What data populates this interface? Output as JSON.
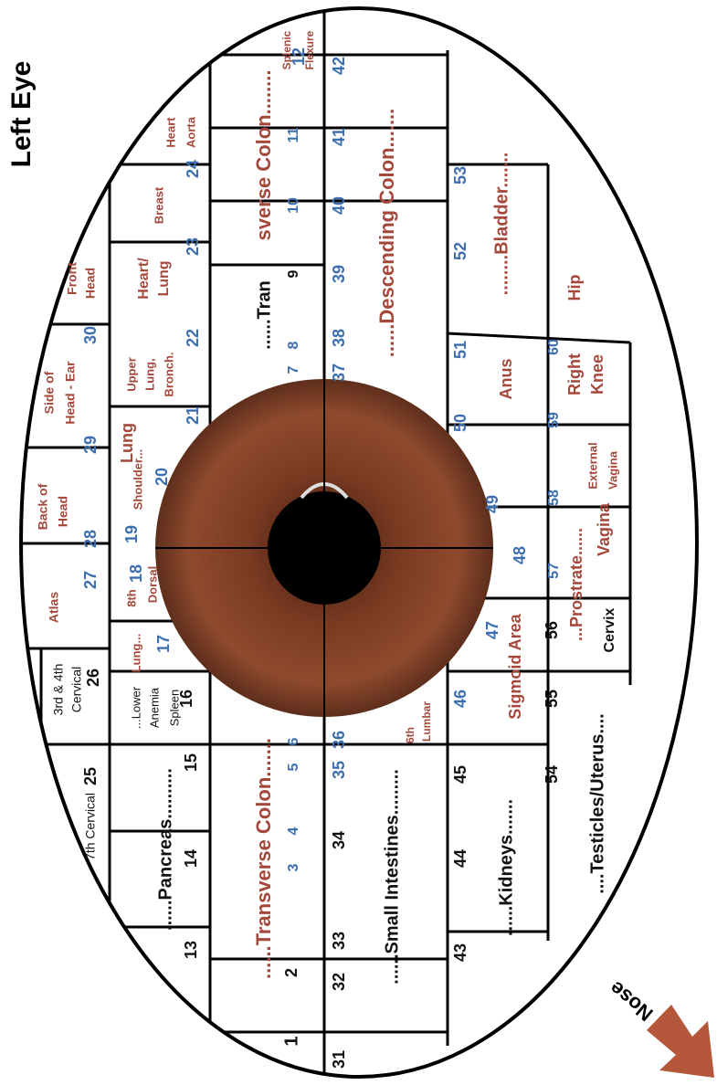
{
  "title": "Left Eye",
  "nose": "Nose",
  "labels": [
    "3rd & 4th",
    "Cervical",
    "26",
    "7th Cervical",
    "25",
    "Atlas",
    "27",
    "Back of",
    "Head",
    "28",
    "Side of",
    "Head - Ear",
    "29",
    "Front",
    "Head",
    "30",
    "Lung...",
    "17",
    "...Lower",
    "Anemia",
    "Spleen",
    "16",
    "8th",
    "18",
    "Dorsal",
    "19",
    "Shoulder...",
    "Lung",
    "20",
    "21",
    "Upper",
    "Lung,",
    "Bronch.",
    "22",
    "Heart/",
    "Lung",
    "23",
    "Breast",
    "24",
    "Heart",
    "Aorta",
    "15",
    "14",
    "13",
    "......Pancreas..........",
    "1",
    "2",
    "3",
    "4",
    "5",
    "6",
    "......Transverse Colon.......",
    "7",
    "8",
    "9",
    "......Tran",
    "sverse Colon........",
    "10",
    "11",
    "12",
    "Splenic",
    "Flexure",
    "31",
    "32",
    "33",
    "34",
    "35",
    "36",
    "37",
    "38",
    "39",
    "40",
    "41",
    "42",
    "......Small Intestines.........",
    "......Descending Colon.......",
    "6th",
    "Lumbar",
    "43",
    "44",
    "45",
    "46",
    "47",
    "48",
    "49",
    "50",
    "51",
    "52",
    "53",
    "......Kidneys.......",
    "Sigmoid Area",
    "Anus",
    "........Bladder.......",
    "54",
    "55",
    "56",
    "57",
    "58",
    "59",
    "60",
    "....Testicles/Uterus....",
    "...Prostrate......",
    "Cervix",
    "Vagina",
    "External",
    "Vagina",
    "Right",
    "Knee",
    "Hip"
  ]
}
